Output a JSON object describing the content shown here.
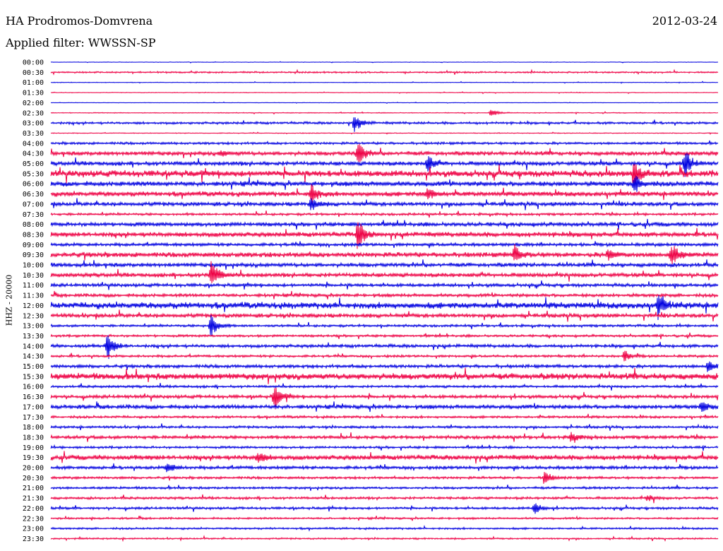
{
  "header": {
    "station": "HA Prodromos-Domvrena",
    "date": "2012-03-24",
    "filter": "Applied filter: WWSSN-SP"
  },
  "chart_data": {
    "type": "line",
    "ylabel": "HHZ - 20000",
    "row_labels": [
      "00:00",
      "00:30",
      "01:00",
      "01:30",
      "02:00",
      "02:30",
      "03:00",
      "03:30",
      "04:00",
      "04:30",
      "05:00",
      "05:30",
      "06:00",
      "06:30",
      "07:00",
      "07:30",
      "08:00",
      "08:30",
      "09:00",
      "09:30",
      "10:00",
      "10:30",
      "11:00",
      "11:30",
      "12:00",
      "12:30",
      "13:00",
      "13:30",
      "14:00",
      "14:30",
      "15:00",
      "15:30",
      "16:00",
      "16:30",
      "17:00",
      "17:30",
      "18:00",
      "18:30",
      "19:00",
      "19:30",
      "20:00",
      "20:30",
      "21:00",
      "21:30",
      "22:00",
      "22:30",
      "23:00",
      "23:30"
    ],
    "colors": [
      "#0000e0",
      "#ee0044"
    ],
    "noise_level": [
      0.3,
      1.0,
      0.4,
      0.4,
      0.3,
      0.5,
      1.5,
      0.5,
      1.5,
      2.5,
      2.5,
      4,
      3,
      3,
      2.5,
      1.5,
      2.5,
      3,
      2,
      3,
      2.5,
      2.5,
      2,
      2,
      4,
      2.5,
      1.5,
      1.5,
      2,
      1.5,
      2,
      4,
      1.5,
      2,
      2.5,
      1.5,
      1.5,
      2,
      1.5,
      3,
      2,
      1.5,
      1.5,
      1.5,
      1.5,
      1.2,
      1.2,
      1
    ],
    "events": [
      {
        "row": 6,
        "t": 0.455,
        "amp": 14
      },
      {
        "row": 5,
        "t": 0.66,
        "amp": 6
      },
      {
        "row": 9,
        "t": 0.46,
        "amp": 18
      },
      {
        "row": 9,
        "t": 0.255,
        "amp": 4
      },
      {
        "row": 10,
        "t": 0.565,
        "amp": 12
      },
      {
        "row": 10,
        "t": 0.95,
        "amp": 22
      },
      {
        "row": 11,
        "t": 0.875,
        "amp": 18
      },
      {
        "row": 12,
        "t": 0.875,
        "amp": 14
      },
      {
        "row": 13,
        "t": 0.39,
        "amp": 16
      },
      {
        "row": 13,
        "t": 0.565,
        "amp": 10
      },
      {
        "row": 14,
        "t": 0.39,
        "amp": 10
      },
      {
        "row": 17,
        "t": 0.46,
        "amp": 22
      },
      {
        "row": 19,
        "t": 0.695,
        "amp": 12
      },
      {
        "row": 19,
        "t": 0.93,
        "amp": 18
      },
      {
        "row": 19,
        "t": 0.835,
        "amp": 8
      },
      {
        "row": 21,
        "t": 0.24,
        "amp": 24
      },
      {
        "row": 24,
        "t": 0.91,
        "amp": 16
      },
      {
        "row": 26,
        "t": 0.24,
        "amp": 18
      },
      {
        "row": 28,
        "t": 0.085,
        "amp": 20
      },
      {
        "row": 29,
        "t": 0.86,
        "amp": 8
      },
      {
        "row": 30,
        "t": 0.985,
        "amp": 10
      },
      {
        "row": 33,
        "t": 0.335,
        "amp": 20
      },
      {
        "row": 34,
        "t": 0.975,
        "amp": 8
      },
      {
        "row": 37,
        "t": 0.78,
        "amp": 8
      },
      {
        "row": 39,
        "t": 0.31,
        "amp": 8
      },
      {
        "row": 40,
        "t": 0.175,
        "amp": 8
      },
      {
        "row": 41,
        "t": 0.74,
        "amp": 10
      },
      {
        "row": 44,
        "t": 0.725,
        "amp": 8
      },
      {
        "row": 43,
        "t": 0.895,
        "amp": 5
      }
    ]
  }
}
